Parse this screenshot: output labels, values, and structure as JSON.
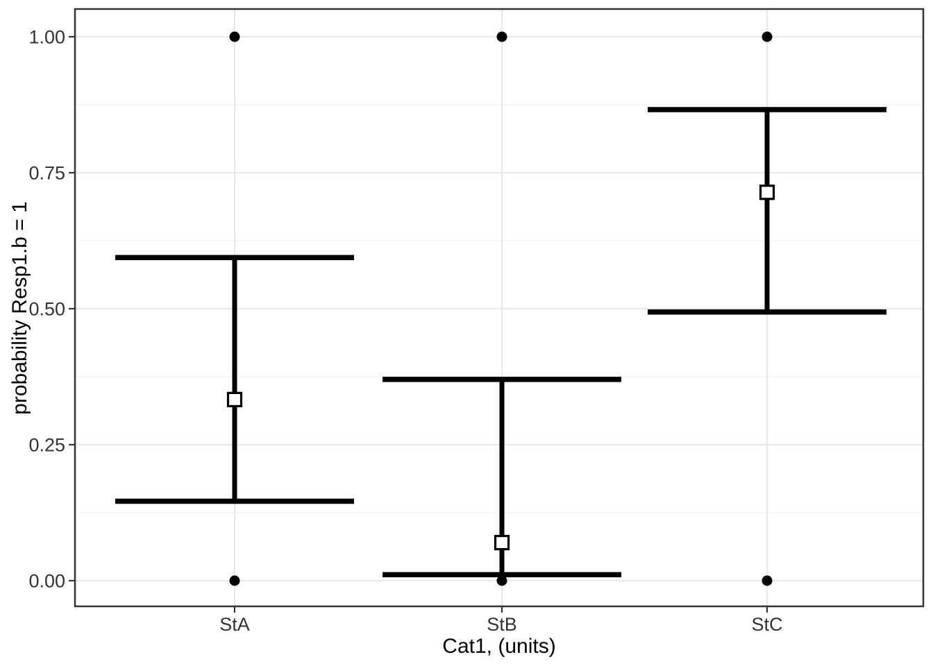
{
  "chart_data": {
    "type": "pointrange",
    "title": "",
    "x_axis": {
      "label": "Cat1, (units)",
      "categories": [
        "StA",
        "StB",
        "StC"
      ]
    },
    "y_axis": {
      "label": "probability Resp1.b = 1",
      "ylim": [
        0,
        1
      ],
      "ticks": [
        {
          "value": 0.0,
          "label": "0.00"
        },
        {
          "value": 0.25,
          "label": "0.25"
        },
        {
          "value": 0.5,
          "label": "0.50"
        },
        {
          "value": 0.75,
          "label": "0.75"
        },
        {
          "value": 1.0,
          "label": "1.00"
        }
      ],
      "minor_ticks": [
        0.125,
        0.375,
        0.625,
        0.875
      ]
    },
    "groups": [
      {
        "category": "StA",
        "estimate": 0.333,
        "ci_lower": 0.146,
        "ci_upper": 0.594,
        "observed_points": [
          0,
          1
        ]
      },
      {
        "category": "StB",
        "estimate": 0.07,
        "ci_lower": 0.011,
        "ci_upper": 0.37,
        "observed_points": [
          0,
          1
        ]
      },
      {
        "category": "StC",
        "estimate": 0.714,
        "ci_lower": 0.494,
        "ci_upper": 0.866,
        "observed_points": [
          0,
          1
        ]
      }
    ],
    "legend": "none",
    "grid": "horizontal major+minor gridlines, vertical major gridlines at category centers"
  },
  "style": {
    "figure_background": "#ffffff",
    "panel_background": "#ffffff",
    "grid_major_color": "#e8e8e8",
    "grid_minor_color": "#f4f4f4",
    "panel_border_color": "#333333",
    "tick_mark_color": "#333333",
    "axis_text_color": "#333333",
    "axis_title_color": "#000000",
    "data_color": "#000000",
    "marker_fill": "#ffffff"
  }
}
